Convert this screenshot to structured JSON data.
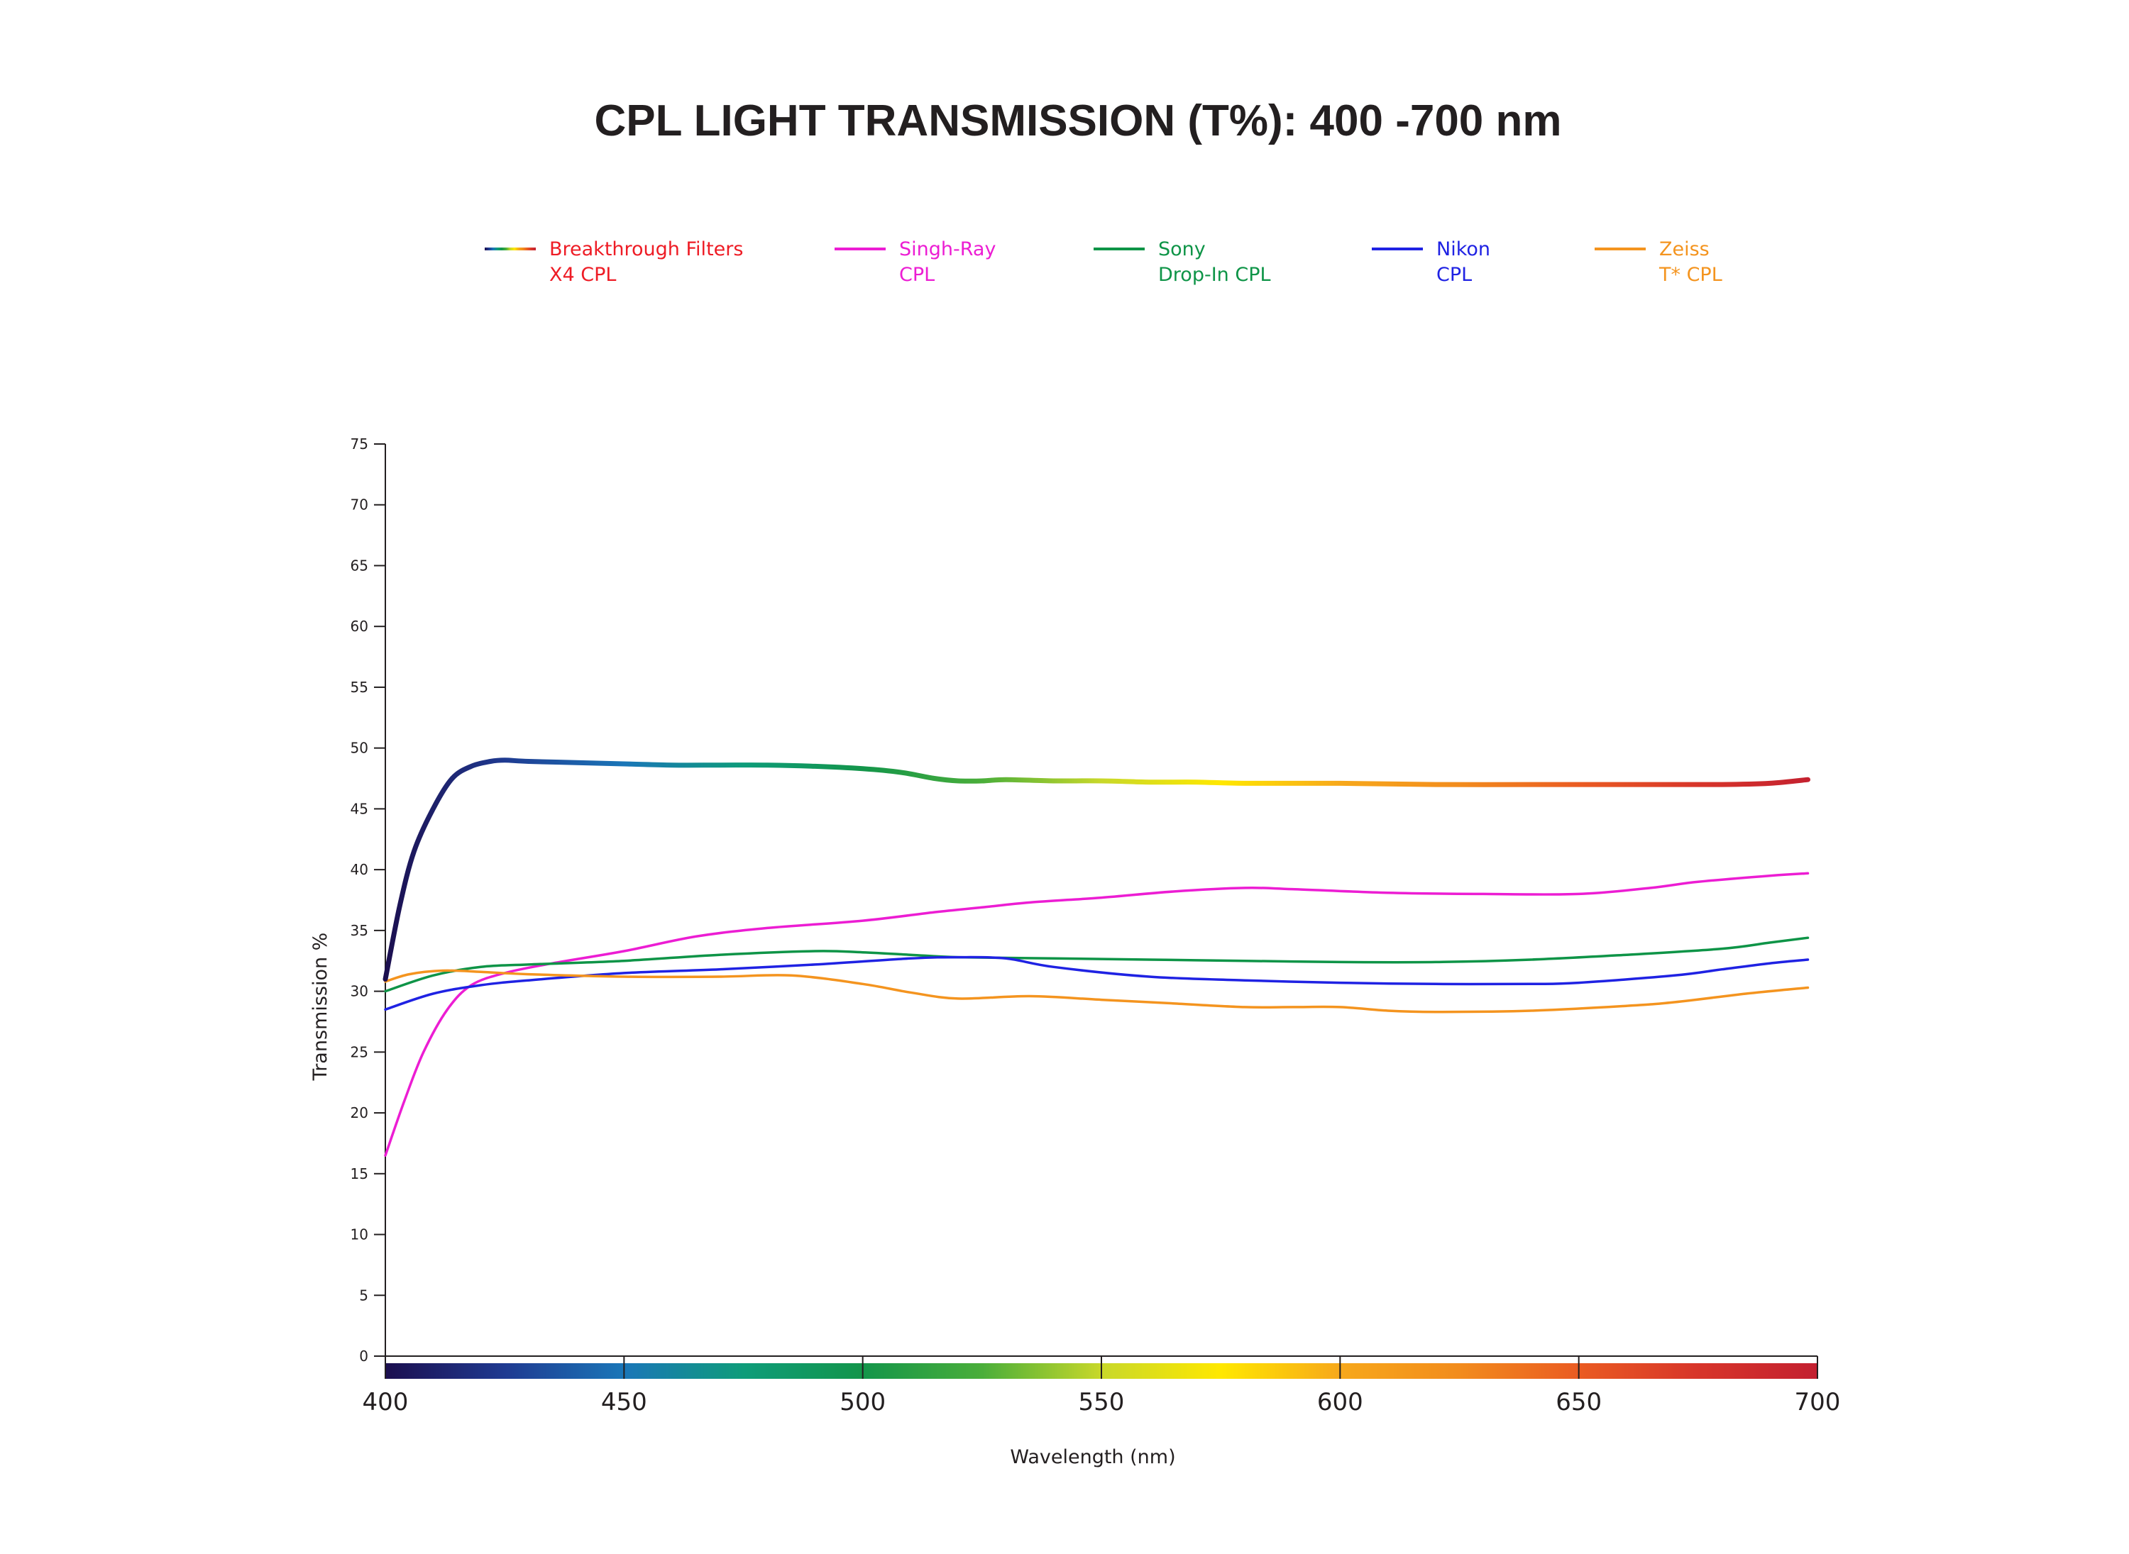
{
  "chart_data": {
    "type": "line",
    "title": "CPL LIGHT TRANSMISSION (T%): 400 -700 nm",
    "xlabel": "Wavelength (nm)",
    "ylabel": "Transmission %",
    "xlim": [
      400,
      700
    ],
    "ylim": [
      0,
      75
    ],
    "x_ticks": [
      "400",
      "450",
      "500",
      "550",
      "600",
      "650",
      "700"
    ],
    "y_ticks": [
      "0",
      "5",
      "10",
      "15",
      "20",
      "25",
      "30",
      "35",
      "40",
      "45",
      "50",
      "55",
      "60",
      "65",
      "70",
      "75"
    ],
    "grid": false,
    "legend_position": "top",
    "spectrum_bar": true,
    "spectrum_colors": [
      "#1c0f4f",
      "#1f3a91",
      "#1a76b8",
      "#0e9c7a",
      "#13954a",
      "#4aae3a",
      "#c8d82a",
      "#ffe800",
      "#f7a81b",
      "#f28c1d",
      "#ea5b22",
      "#d7352a",
      "#c32030"
    ],
    "series": [
      {
        "name": "Breakthrough Filters X4 CPL",
        "legend_lines": [
          "Breakthrough Filters",
          "X4 CPL"
        ],
        "label_color": "#ee1c25",
        "line": "spectrum",
        "x": [
          400,
          403,
          406,
          410,
          414,
          418,
          422,
          425,
          430,
          440,
          450,
          460,
          470,
          480,
          490,
          500,
          508,
          515,
          520,
          525,
          530,
          540,
          550,
          560,
          570,
          580,
          600,
          620,
          640,
          660,
          680,
          690,
          698
        ],
        "y": [
          31,
          37,
          41.5,
          45,
          47.5,
          48.5,
          48.9,
          49,
          48.9,
          48.8,
          48.7,
          48.6,
          48.6,
          48.6,
          48.5,
          48.3,
          48.0,
          47.5,
          47.3,
          47.3,
          47.4,
          47.3,
          47.3,
          47.2,
          47.2,
          47.1,
          47.1,
          47.0,
          47.0,
          47.0,
          47.0,
          47.1,
          47.4
        ]
      },
      {
        "name": "Singh-Ray CPL",
        "legend_lines": [
          "Singh-Ray",
          "CPL"
        ],
        "label_color": "#ec1dd3",
        "color": "#ec1dd3",
        "x": [
          400,
          404,
          408,
          413,
          418,
          425,
          435,
          450,
          465,
          480,
          500,
          515,
          525,
          535,
          550,
          565,
          580,
          590,
          610,
          630,
          650,
          665,
          675,
          690,
          698
        ],
        "y": [
          16.5,
          21,
          25,
          28.5,
          30.5,
          31.5,
          32.3,
          33.3,
          34.5,
          35.2,
          35.8,
          36.5,
          36.9,
          37.3,
          37.7,
          38.2,
          38.5,
          38.4,
          38.1,
          38.0,
          38.0,
          38.5,
          39.0,
          39.5,
          39.7
        ]
      },
      {
        "name": "Sony Drop-In CPL",
        "legend_lines": [
          "Sony",
          "Drop-In CPL"
        ],
        "label_color": "#0e9447",
        "color": "#0e9447",
        "x": [
          400,
          410,
          420,
          430,
          450,
          470,
          490,
          500,
          510,
          520,
          540,
          560,
          580,
          600,
          620,
          640,
          660,
          680,
          690,
          698
        ],
        "y": [
          30,
          31.3,
          32,
          32.2,
          32.5,
          33,
          33.3,
          33.2,
          33,
          32.8,
          32.7,
          32.6,
          32.5,
          32.4,
          32.4,
          32.6,
          33,
          33.5,
          34,
          34.4
        ]
      },
      {
        "name": "Nikon CPL",
        "legend_lines": [
          "Nikon",
          "CPL"
        ],
        "label_color": "#1f22e3",
        "color": "#1f22e3",
        "x": [
          400,
          410,
          420,
          430,
          450,
          470,
          490,
          510,
          520,
          530,
          540,
          560,
          580,
          600,
          620,
          640,
          650,
          670,
          680,
          690,
          698
        ],
        "y": [
          28.5,
          29.8,
          30.5,
          30.9,
          31.5,
          31.8,
          32.2,
          32.7,
          32.8,
          32.7,
          32.0,
          31.2,
          30.9,
          30.7,
          30.6,
          30.6,
          30.7,
          31.3,
          31.8,
          32.3,
          32.6
        ]
      },
      {
        "name": "Zeiss T* CPL",
        "legend_lines": [
          "Zeiss",
          "T* CPL"
        ],
        "label_color": "#f4941f",
        "color": "#f4941f",
        "x": [
          400,
          405,
          412,
          420,
          430,
          450,
          470,
          485,
          500,
          510,
          520,
          535,
          550,
          565,
          580,
          590,
          600,
          610,
          620,
          640,
          660,
          670,
          685,
          698
        ],
        "y": [
          30.8,
          31.4,
          31.7,
          31.6,
          31.4,
          31.2,
          31.2,
          31.3,
          30.6,
          29.9,
          29.4,
          29.6,
          29.3,
          29.0,
          28.7,
          28.7,
          28.7,
          28.4,
          28.3,
          28.4,
          28.8,
          29.1,
          29.8,
          30.3
        ]
      }
    ]
  }
}
